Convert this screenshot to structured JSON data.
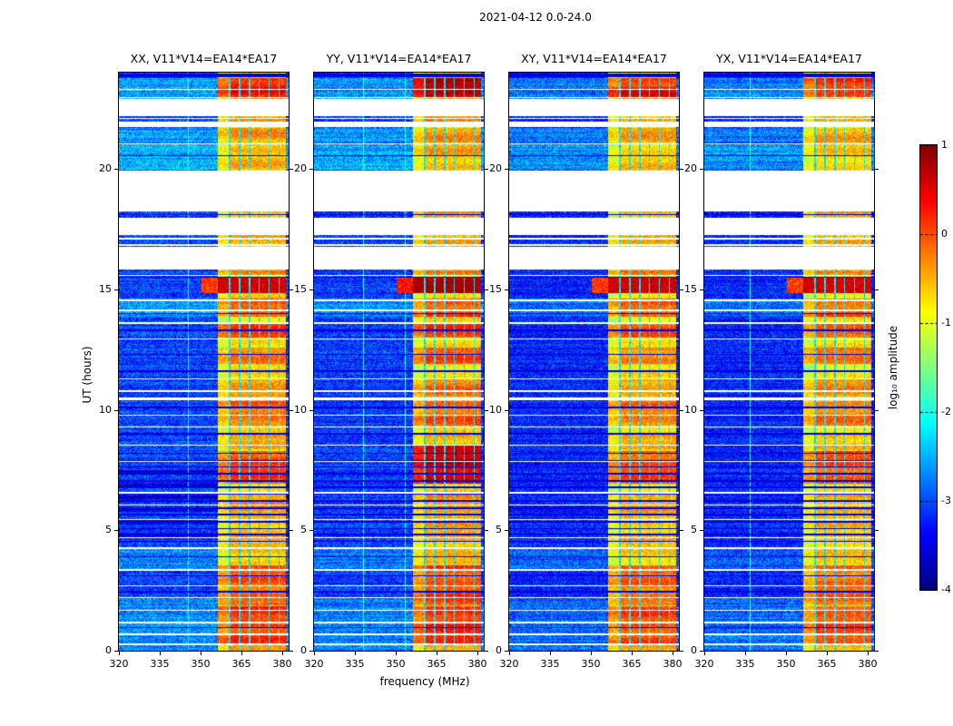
{
  "figure_title": "2021-04-12 0.0-24.0",
  "chart_data": {
    "type": "heatmap",
    "xlabel": "frequency (MHz)",
    "ylabel": "UT (hours)",
    "x_range": [
      320,
      382.3
    ],
    "y_range": [
      0,
      24
    ],
    "x_ticks": [
      320,
      335,
      350,
      365,
      380
    ],
    "y_ticks": [
      0,
      5,
      10,
      15,
      20
    ],
    "colorbar": {
      "label": "log₁₀ amplitude",
      "range": [
        -4,
        1
      ],
      "ticks": [
        1,
        0,
        -1,
        -2,
        -3,
        -4
      ],
      "colormap": "jet"
    },
    "panels": [
      {
        "id": "xx",
        "title": "XX, V11*V14=EA14*EA17",
        "seed": 11,
        "offset": 0,
        "band_scale": 1.0,
        "stripes": true,
        "vlines": [
          345.5
        ],
        "hot_extra": []
      },
      {
        "id": "yy",
        "title": "YY, V11*V14=EA14*EA17",
        "seed": 23,
        "offset": -0.05,
        "band_scale": 1.05,
        "stripes": false,
        "vlines": [
          338.2,
          353.6
        ],
        "hot_extra": [
          [
            6.95,
            8.55,
            0.95
          ],
          [
            23.0,
            23.76,
            1.0
          ],
          [
            14.85,
            15.48,
            1.05
          ]
        ]
      },
      {
        "id": "xy",
        "title": "XY, V11*V14=EA14*EA17",
        "seed": 37,
        "offset": -0.18,
        "band_scale": 0.95,
        "stripes": false,
        "vlines": [],
        "hot_extra": [
          [
            14.85,
            15.48,
            1.05
          ],
          [
            23.0,
            23.4,
            0.95
          ]
        ]
      },
      {
        "id": "yx",
        "title": "YX, V11*V14=EA14*EA17",
        "seed": 51,
        "offset": -0.18,
        "band_scale": 0.95,
        "stripes": false,
        "vlines": [
          336.8
        ],
        "hot_extra": []
      }
    ],
    "features": {
      "background_level": -3.05,
      "rfi_band_mhz": [
        356.5,
        381.3
      ],
      "rfi_notches_mhz": [
        360.7,
        364.3,
        367.9,
        371.5,
        375.2,
        378.8
      ],
      "burst_ut": [
        14.85,
        15.48
      ],
      "white_gaps_ut": [
        [
          22.21,
          22.89
        ],
        [
          21.73,
          21.95
        ],
        [
          18.23,
          19.93
        ],
        [
          17.25,
          17.97
        ],
        [
          15.82,
          16.77
        ],
        [
          10.38,
          10.52
        ]
      ],
      "white_lines_ut": [
        23.3,
        22.97,
        22.1,
        21.05,
        17.1,
        16.85,
        15.57,
        14.55,
        14.12,
        13.6,
        12.95,
        11.28,
        10.78,
        9.77,
        9.29,
        8.53,
        7.85,
        6.55,
        6.05,
        5.45,
        4.7,
        4.25,
        3.35,
        2.7,
        2.2,
        1.68,
        1.17,
        0.68,
        0.27
      ],
      "dark_lines_ut": [
        20.55,
        18.1,
        15.5,
        14.0,
        13.3,
        12.3,
        11.6,
        10.1,
        9.0,
        8.2,
        7.9,
        7.62,
        7.35,
        7.05,
        6.78,
        6.5,
        6.22,
        5.92,
        5.65,
        5.35,
        5.08,
        4.82,
        4.55,
        3.9,
        3.1,
        2.45,
        0.95
      ],
      "dark_bands_ut": [
        [
          23.82,
          23.98
        ]
      ],
      "cyan_bands_ut": [
        [
          19.95,
          21.05,
          -2.5
        ],
        [
          21.1,
          21.7,
          -2.6
        ],
        [
          0.0,
          2.2,
          -2.7
        ],
        [
          3.3,
          4.3,
          -2.75
        ],
        [
          13.85,
          14.6,
          -2.65
        ],
        [
          22.9,
          23.76,
          -2.6
        ]
      ],
      "band_hot_intervals": [
        [
          23.0,
          23.76,
          0.85
        ],
        [
          22.9,
          23.0,
          0.6
        ],
        [
          21.95,
          22.2,
          0.55
        ],
        [
          21.1,
          21.7,
          0.6
        ],
        [
          19.95,
          21.05,
          0.5
        ],
        [
          18.0,
          18.22,
          0.55
        ],
        [
          16.78,
          17.24,
          0.55
        ],
        [
          15.55,
          15.8,
          0.65
        ],
        [
          14.85,
          15.48,
          1.0
        ],
        [
          13.85,
          14.6,
          0.72
        ],
        [
          12.98,
          13.58,
          0.78
        ],
        [
          11.9,
          12.6,
          0.68
        ],
        [
          10.55,
          11.3,
          0.62
        ],
        [
          9.35,
          10.35,
          0.68
        ],
        [
          8.35,
          9.0,
          0.55
        ],
        [
          6.95,
          8.3,
          0.78
        ],
        [
          5.5,
          6.5,
          0.58
        ],
        [
          4.3,
          5.4,
          0.52
        ],
        [
          3.6,
          4.25,
          0.5
        ],
        [
          1.9,
          3.55,
          0.72
        ],
        [
          0.25,
          1.85,
          0.78
        ],
        [
          0.0,
          0.25,
          0.6
        ]
      ]
    }
  }
}
